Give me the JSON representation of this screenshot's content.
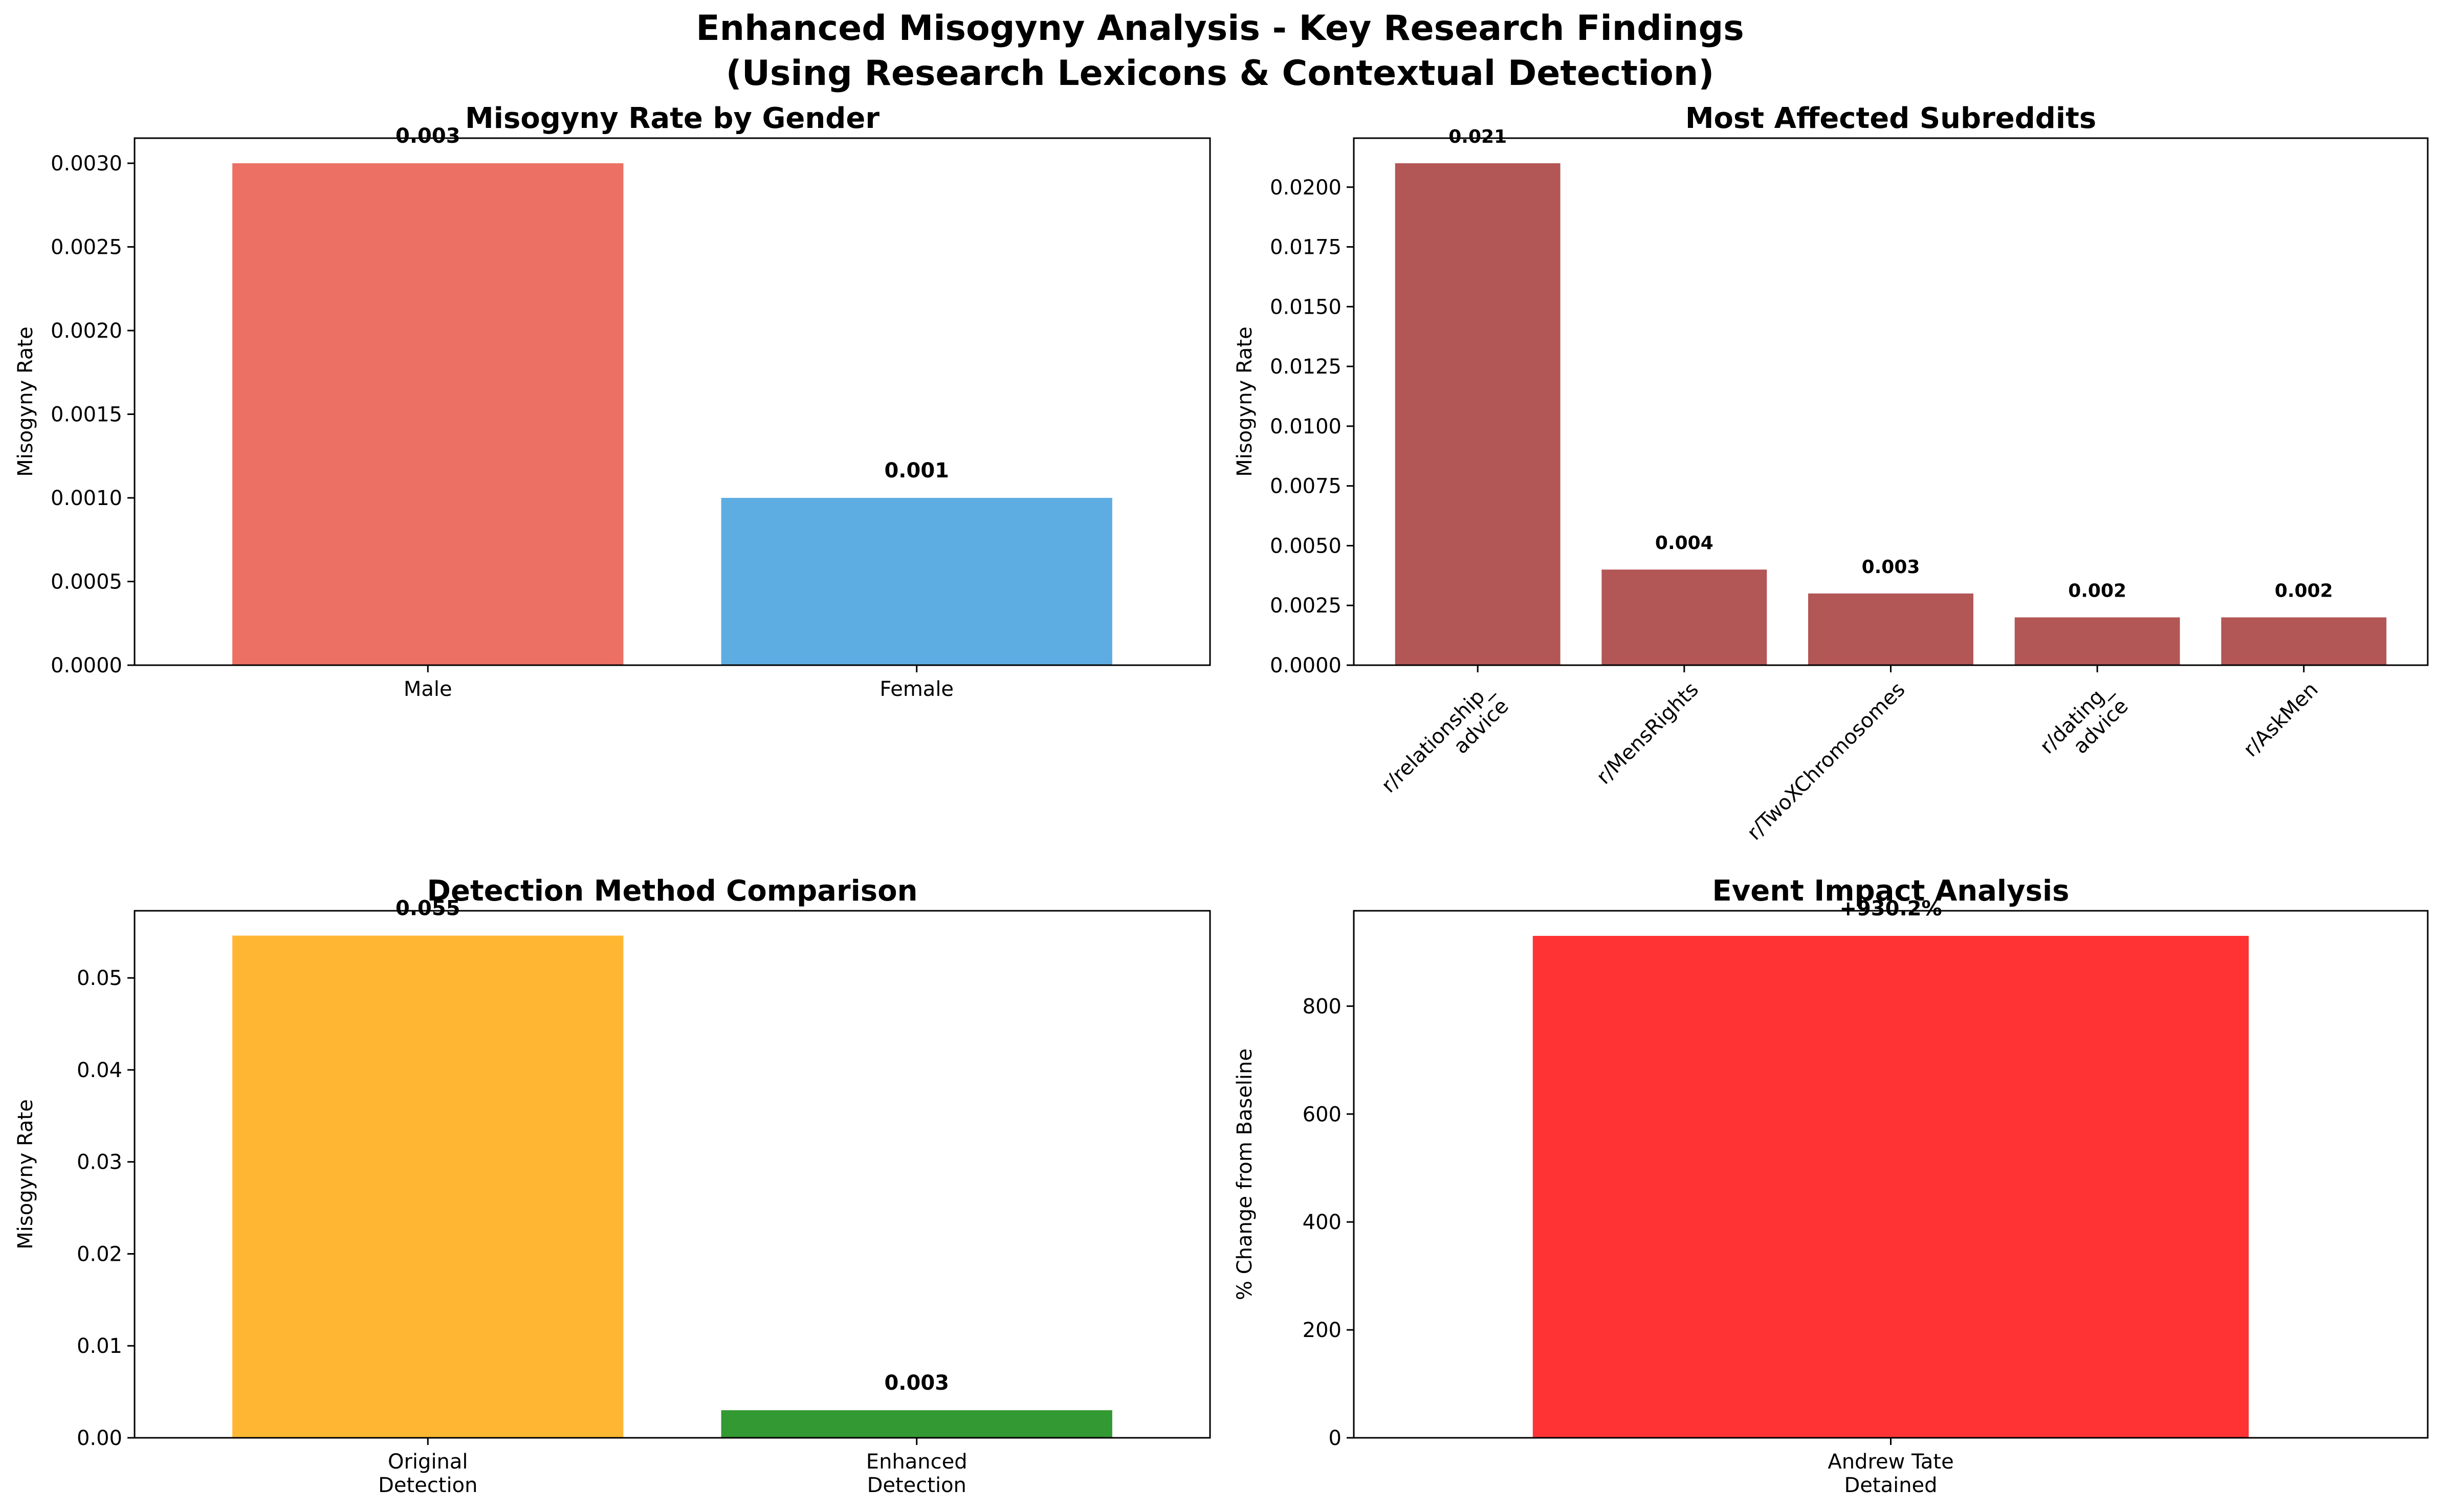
{
  "figure": {
    "title_line1": "Enhanced Misogyny Analysis - Key Research Findings",
    "title_line2": "(Using Research Lexicons & Contextual Detection)"
  },
  "colors": {
    "male": "#e74c3c",
    "female": "#3498db",
    "subreddit": "#a02c2c",
    "original": "#ffa500",
    "enhanced": "#008000",
    "event": "#ff0000"
  },
  "chart_data": [
    {
      "id": "gender",
      "type": "bar",
      "title": "Misogyny Rate by Gender",
      "xlabel": "",
      "ylabel": "Misogyny Rate",
      "categories": [
        "Male",
        "Female"
      ],
      "values": [
        0.003,
        0.001
      ],
      "value_labels": [
        "0.003",
        "0.001"
      ],
      "colors": [
        "#e74c3c",
        "#3498db"
      ],
      "ylim": [
        0,
        0.00315
      ],
      "yticks": [
        0,
        0.0005,
        0.001,
        0.0015,
        0.002,
        0.0025,
        0.003
      ],
      "ytick_labels": [
        "0.0000",
        "0.0005",
        "0.0010",
        "0.0015",
        "0.0020",
        "0.0025",
        "0.0030"
      ],
      "grid": false,
      "legend": "none"
    },
    {
      "id": "subreddits",
      "type": "bar",
      "title": "Most Affected Subreddits",
      "xlabel": "",
      "ylabel": "Misogyny Rate",
      "categories": [
        "r/relationship_\nadvice",
        "r/MensRights",
        "r/TwoXChromosomes",
        "r/dating_\nadvice",
        "r/AskMen"
      ],
      "values": [
        0.021,
        0.004,
        0.003,
        0.002,
        0.002
      ],
      "value_labels": [
        "0.021",
        "0.004",
        "0.003",
        "0.002",
        "0.002"
      ],
      "colors": [
        "#a02c2c",
        "#a02c2c",
        "#a02c2c",
        "#a02c2c",
        "#a02c2c"
      ],
      "ylim": [
        0,
        0.02205
      ],
      "yticks": [
        0,
        0.0025,
        0.005,
        0.0075,
        0.01,
        0.0125,
        0.015,
        0.0175,
        0.02
      ],
      "ytick_labels": [
        "0.0000",
        "0.0025",
        "0.0050",
        "0.0075",
        "0.0100",
        "0.0125",
        "0.0150",
        "0.0175",
        "0.0200"
      ],
      "xtick_rotation": 45,
      "grid": false,
      "legend": "none"
    },
    {
      "id": "detection",
      "type": "bar",
      "title": "Detection Method Comparison",
      "xlabel": "",
      "ylabel": "Misogyny Rate",
      "categories": [
        "Original\nDetection",
        "Enhanced\nDetection"
      ],
      "values": [
        0.0546,
        0.003
      ],
      "value_labels": [
        "0.055",
        "0.003"
      ],
      "colors": [
        "#ffa500",
        "#008000"
      ],
      "ylim": [
        0,
        0.0573
      ],
      "yticks": [
        0,
        0.01,
        0.02,
        0.03,
        0.04,
        0.05
      ],
      "ytick_labels": [
        "0.00",
        "0.01",
        "0.02",
        "0.03",
        "0.04",
        "0.05"
      ],
      "grid": false,
      "legend": "none"
    },
    {
      "id": "event",
      "type": "bar",
      "title": "Event Impact Analysis",
      "xlabel": "",
      "ylabel": "% Change from Baseline",
      "categories": [
        "Andrew Tate\nDetained"
      ],
      "values": [
        930.2
      ],
      "value_labels": [
        "+930.2%"
      ],
      "colors": [
        "#ff0000"
      ],
      "ylim": [
        0,
        976.7
      ],
      "yticks": [
        0,
        200,
        400,
        600,
        800
      ],
      "ytick_labels": [
        "0",
        "200",
        "400",
        "600",
        "800"
      ],
      "grid": false,
      "legend": "none"
    }
  ]
}
